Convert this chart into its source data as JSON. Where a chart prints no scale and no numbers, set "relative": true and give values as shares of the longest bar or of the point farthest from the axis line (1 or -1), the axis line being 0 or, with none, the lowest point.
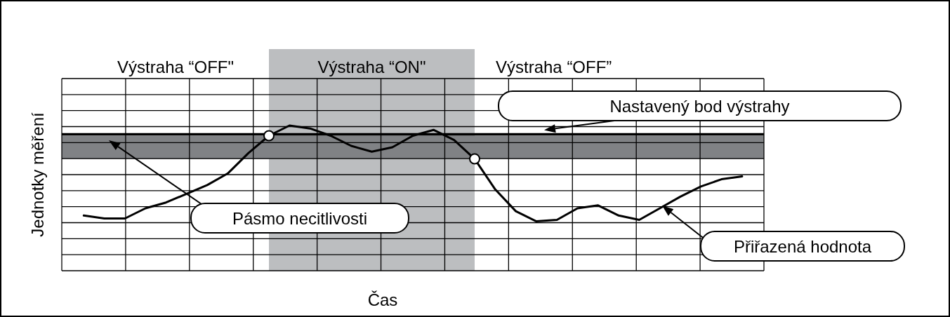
{
  "chart_data": {
    "type": "line",
    "relative": true,
    "xlabel": "Čas",
    "ylabel": "Jednotky měření",
    "grid": true,
    "categories": [
      null,
      null,
      null,
      null,
      null,
      null,
      null,
      null,
      null,
      null,
      null,
      null,
      null,
      null,
      null,
      null,
      null,
      null,
      null,
      null,
      null,
      null,
      null,
      null,
      null,
      null,
      null,
      null,
      null,
      null,
      null,
      null,
      null
    ],
    "series": [
      {
        "name": "Přiřazená hodnota",
        "color": "#000000",
        "values": [
          0.38,
          0.36,
          0.36,
          0.43,
          0.47,
          0.53,
          0.59,
          0.67,
          0.81,
          0.93,
          1,
          0.98,
          0.93,
          0.86,
          0.82,
          0.85,
          0.93,
          0.97,
          0.9,
          0.77,
          0.56,
          0.41,
          0.34,
          0.35,
          0.43,
          0.45,
          0.38,
          0.35,
          0.43,
          0.51,
          0.58,
          0.63,
          0.65
        ]
      }
    ],
    "ref_lines": [
      {
        "axis": "y",
        "value": 0.94,
        "label": "Nastavený bod výstrahy",
        "color": "#000000"
      }
    ],
    "bands": [
      {
        "axis": "y",
        "from": 0.77,
        "to": 0.93,
        "label": "Pásmo necitlivosti",
        "color": "#808285"
      }
    ],
    "annotations": [
      "Výstraha “OFF\"",
      "Výstraha “ON\"",
      "Výstraha “OFF”"
    ]
  }
}
